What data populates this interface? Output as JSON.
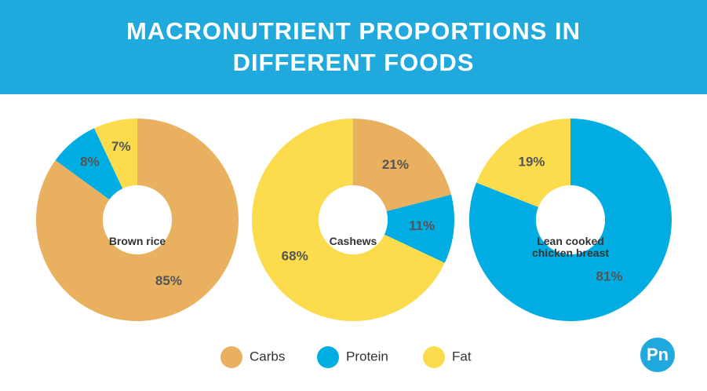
{
  "title": "MACRONUTRIENT PROPORTIONS IN DIFFERENT FOODS",
  "logo": "Pn",
  "chart_data": [
    {
      "type": "pie",
      "title": "Brown rice",
      "categories": [
        "Carbs",
        "Protein",
        "Fat"
      ],
      "values": [
        85,
        8,
        7
      ],
      "value_labels": [
        "85%",
        "8%",
        "7%"
      ],
      "colors": [
        "#e8b05f",
        "#00ade2",
        "#fcdb4d"
      ]
    },
    {
      "type": "pie",
      "title": "Cashews",
      "categories": [
        "Carbs",
        "Protein",
        "Fat"
      ],
      "values": [
        21,
        11,
        68
      ],
      "value_labels": [
        "21%",
        "11%",
        "68%"
      ],
      "colors": [
        "#e8b05f",
        "#00ade2",
        "#fcdb4d"
      ]
    },
    {
      "type": "pie",
      "title": "Lean cooked chicken breast",
      "categories": [
        "Protein",
        "Fat"
      ],
      "values": [
        81,
        19
      ],
      "value_labels": [
        "81%",
        "19%"
      ],
      "colors": [
        "#00ade2",
        "#fcdb4d"
      ]
    }
  ]
}
